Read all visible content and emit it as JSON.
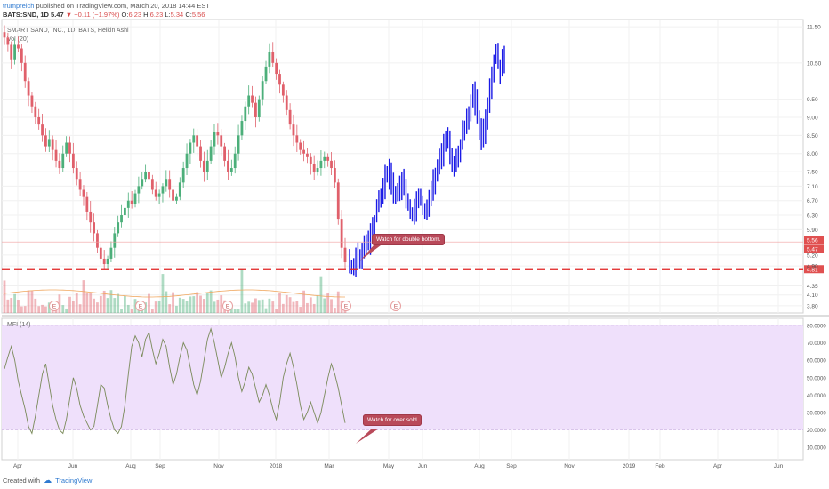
{
  "header": {
    "author": "trumpreich",
    "published_text": "published on TradingView.com, March 20, 2018 14:44 EST",
    "symbol": "BATS:SND, 1D",
    "last": "5.47",
    "change": "−0.11 (−1.97%)",
    "o_label": "O:",
    "o_value": "6.23",
    "h_label": "H:",
    "h_value": "6.23",
    "l_label": "L:",
    "l_value": "5.34",
    "c_label": "C:",
    "c_value": "5.56"
  },
  "legend": {
    "title": "SMART SAND, INC., 1D, BATS, Heikin Ashi",
    "volume": "Vol (20)",
    "mfi": "MFI (14)"
  },
  "callouts": {
    "double_bottom": "Watch for double bottom.",
    "over_sold": "Watch for over sold"
  },
  "footer": {
    "created_with": "Created with",
    "brand": "TradingView"
  },
  "colors": {
    "up": "#4caf7a",
    "down": "#e0606b",
    "projection": "#1a1ae6",
    "support": "#e02020",
    "mfi_band": "#efe0fb",
    "mfi_line": "#7a8a5a",
    "volume_ma": "#f0a860",
    "price_badge": "#e05050"
  },
  "chart_data": [
    {
      "type": "candlestick",
      "title": "SMART SAND, INC., 1D, BATS, Heikin Ashi",
      "x_ticks": [
        "Apr",
        "Jun",
        "Aug",
        "Sep",
        "Nov",
        "2018",
        "Mar",
        "May",
        "Jun",
        "Aug",
        "Sep",
        "Nov",
        "2019",
        "Feb",
        "Apr",
        "Jun"
      ],
      "y_ticks": [
        "11.50",
        "10.50",
        "9.50",
        "9.00",
        "8.50",
        "8.00",
        "7.50",
        "7.10",
        "6.70",
        "6.30",
        "5.90",
        "5.20",
        "4.90",
        "4.35",
        "4.10",
        "3.80"
      ],
      "ylim": [
        3.7,
        11.6
      ],
      "price_labels": [
        "5.56",
        "5.47",
        "4.81"
      ],
      "support_level": 4.81,
      "earnings_marker": "E",
      "history_close": [
        11.2,
        11.0,
        10.6,
        11.0,
        10.9,
        10.5,
        10.0,
        9.6,
        9.3,
        9.0,
        8.8,
        8.5,
        8.2,
        8.4,
        8.1,
        7.8,
        7.6,
        8.0,
        8.3,
        8.0,
        7.6,
        7.3,
        7.0,
        6.8,
        6.4,
        6.1,
        5.8,
        5.4,
        5.1,
        4.95,
        5.1,
        5.4,
        5.8,
        6.1,
        6.3,
        6.5,
        6.7,
        6.6,
        6.9,
        7.1,
        7.3,
        7.5,
        7.3,
        7.0,
        6.8,
        6.9,
        7.1,
        7.3,
        7.0,
        6.7,
        6.8,
        7.2,
        7.6,
        8.0,
        8.3,
        8.5,
        8.2,
        7.8,
        7.5,
        7.8,
        8.2,
        8.6,
        8.5,
        8.2,
        7.8,
        7.5,
        7.6,
        8.0,
        8.5,
        8.9,
        9.3,
        9.6,
        9.4,
        9.0,
        9.5,
        10.0,
        10.4,
        10.8,
        10.5,
        10.2,
        9.9,
        9.6,
        9.2,
        8.8,
        8.5,
        8.3,
        8.1,
        8.0,
        7.9,
        7.7,
        7.5,
        7.6,
        7.8,
        7.9,
        7.8,
        7.6,
        7.2,
        6.2,
        5.4,
        5.0
      ],
      "projection_close": [
        4.9,
        4.85,
        5.0,
        5.2,
        5.1,
        4.95,
        5.3,
        5.5,
        5.6,
        5.5,
        5.8,
        6.0,
        6.2,
        6.5,
        6.7,
        6.9,
        7.1,
        7.3,
        7.5,
        7.4,
        7.2,
        7.0,
        6.8,
        6.9,
        7.1,
        7.3,
        7.0,
        6.8,
        6.6,
        6.4,
        6.3,
        6.5,
        6.7,
        6.9,
        6.7,
        6.5,
        6.4,
        6.6,
        6.8,
        7.0,
        7.2,
        7.4,
        7.6,
        7.8,
        8.0,
        8.3,
        8.5,
        8.3,
        8.0,
        7.8,
        7.6,
        7.8,
        8.0,
        8.3,
        8.6,
        8.8,
        9.0,
        9.2,
        9.4,
        9.6,
        9.4,
        9.0,
        8.6,
        8.4,
        8.6,
        9.0,
        9.4,
        9.8,
        10.2,
        10.6,
        10.8,
        10.5,
        10.3,
        10.6,
        10.8
      ]
    },
    {
      "type": "area",
      "title": "MFI (14)",
      "y_ticks": [
        "80.0000",
        "70.0000",
        "60.0000",
        "50.0000",
        "40.0000",
        "30.0000",
        "20.0000",
        "10.0000"
      ],
      "ylim": [
        5,
        82
      ],
      "band": [
        20,
        80
      ],
      "values": [
        55,
        62,
        68,
        60,
        48,
        40,
        32,
        22,
        18,
        28,
        40,
        52,
        58,
        46,
        34,
        26,
        20,
        18,
        26,
        38,
        50,
        44,
        34,
        28,
        24,
        20,
        22,
        34,
        46,
        44,
        34,
        26,
        20,
        18,
        22,
        34,
        52,
        68,
        74,
        70,
        62,
        72,
        76,
        66,
        58,
        64,
        72,
        68,
        56,
        46,
        52,
        62,
        70,
        66,
        56,
        46,
        40,
        48,
        60,
        72,
        78,
        70,
        60,
        50,
        56,
        64,
        70,
        62,
        50,
        42,
        48,
        56,
        52,
        44,
        36,
        40,
        46,
        40,
        32,
        26,
        36,
        50,
        58,
        64,
        56,
        46,
        34,
        26,
        30,
        36,
        30,
        24,
        30,
        40,
        50,
        58,
        52,
        44,
        34,
        24
      ]
    }
  ]
}
